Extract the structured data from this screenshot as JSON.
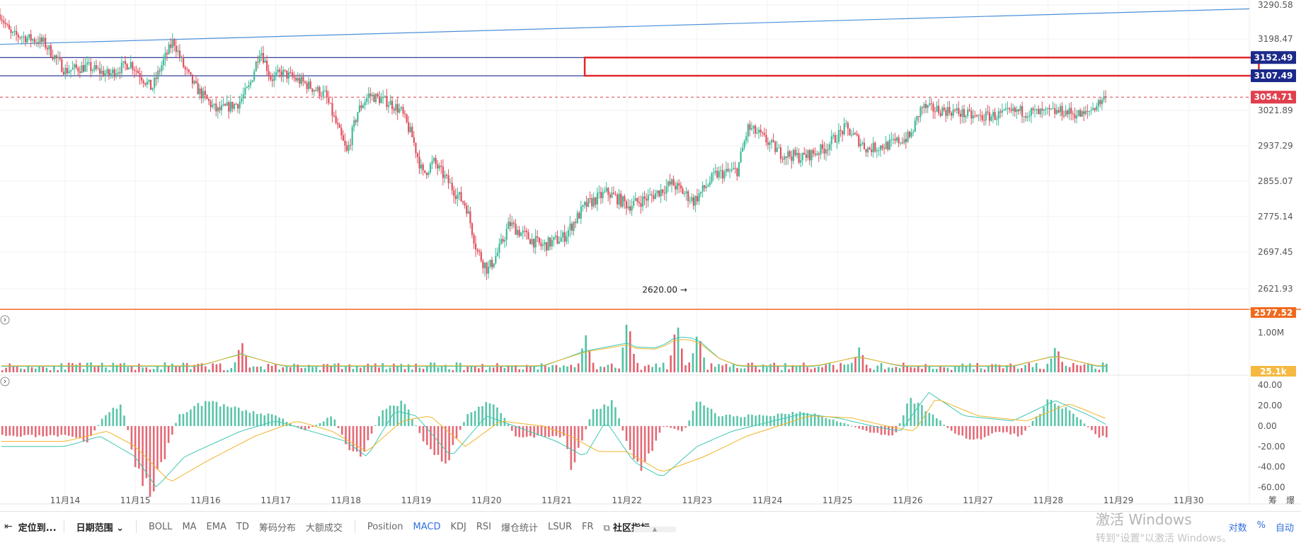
{
  "chart_data": [
    {
      "type": "candlestick",
      "title": "",
      "x_dates": [
        "11月14",
        "11月15",
        "11月16",
        "11月17",
        "11月18",
        "11月19",
        "11月20",
        "11月21",
        "11月22",
        "11月23",
        "11月24",
        "11月25",
        "11月26",
        "11月27",
        "11月28",
        "11月29",
        "11月30"
      ],
      "y_ticks": [
        "3290.58",
        "3198.47",
        "3021.89",
        "2937.29",
        "2855.07",
        "2775.14",
        "2697.45",
        "2621.93"
      ],
      "ylim": [
        2577.52,
        3290.58
      ],
      "path": [
        [
          0,
          3265
        ],
        [
          0.5,
          3210
        ],
        [
          1,
          3205
        ],
        [
          2,
          3190
        ],
        [
          3,
          3120
        ],
        [
          4,
          3130
        ],
        [
          5,
          3110
        ],
        [
          6,
          3140
        ],
        [
          7,
          3075
        ],
        [
          7.5,
          3140
        ],
        [
          8,
          3195
        ],
        [
          8.5,
          3125
        ],
        [
          9,
          3080
        ],
        [
          10,
          3020
        ],
        [
          11,
          3040
        ],
        [
          11.5,
          3080
        ],
        [
          12,
          3175
        ],
        [
          12.5,
          3100
        ],
        [
          13,
          3115
        ],
        [
          14,
          3090
        ],
        [
          15,
          3060
        ],
        [
          16,
          2920
        ],
        [
          16.5,
          3020
        ],
        [
          17,
          3060
        ],
        [
          18,
          3040
        ],
        [
          18.5,
          3020
        ],
        [
          19,
          2960
        ],
        [
          19.5,
          2870
        ],
        [
          20,
          2900
        ],
        [
          21,
          2830
        ],
        [
          21.5,
          2800
        ],
        [
          22,
          2700
        ],
        [
          22.5,
          2660
        ],
        [
          23,
          2700
        ],
        [
          23.5,
          2760
        ],
        [
          24,
          2740
        ],
        [
          25,
          2710
        ],
        [
          26,
          2730
        ],
        [
          27,
          2800
        ],
        [
          28,
          2830
        ],
        [
          29,
          2800
        ],
        [
          30,
          2820
        ],
        [
          31,
          2850
        ],
        [
          32,
          2810
        ],
        [
          33,
          2870
        ],
        [
          34,
          2880
        ],
        [
          34.5,
          2980
        ],
        [
          35,
          2965
        ],
        [
          36,
          2920
        ],
        [
          37,
          2910
        ],
        [
          38,
          2930
        ],
        [
          39,
          2980
        ],
        [
          40,
          2930
        ],
        [
          41,
          2940
        ],
        [
          42,
          2960
        ],
        [
          42.5,
          3030
        ],
        [
          43,
          3025
        ],
        [
          44,
          3020
        ],
        [
          45,
          3005
        ],
        [
          46,
          3010
        ],
        [
          47,
          3020
        ],
        [
          48,
          3015
        ],
        [
          49,
          3020
        ],
        [
          50,
          3010
        ],
        [
          51,
          3054.71
        ]
      ],
      "horizontal_levels": [
        {
          "value": 3152.49,
          "label": "3152.49",
          "color": "#1b2a8a"
        },
        {
          "value": 3107.49,
          "label": "3107.49",
          "color": "#1b2a8a"
        },
        {
          "value": 3054.71,
          "label": "3054.71",
          "color": "#e0404e",
          "dashed": true
        }
      ],
      "baseline": {
        "value": 2577.52,
        "label": "2577.52",
        "color": "#f06a1e"
      },
      "trendline": {
        "from": [
          0,
          3185
        ],
        "to": [
          17.3,
          3280
        ],
        "color": "#4a90d9"
      },
      "highlight_box": {
        "y_top": 3152.49,
        "y_bottom": 3107.49,
        "x_from": 7.4,
        "x_to": 17.0,
        "color": "#e0282d"
      },
      "annotation": {
        "text": "2620.00",
        "x": 8.9,
        "y": 2620.0
      },
      "up_color": "#3dbb9a",
      "down_color": "#e0505e"
    },
    {
      "type": "bar",
      "name": "volume",
      "y_ticks": [
        "1.00M"
      ],
      "ylim": [
        0,
        1.3
      ],
      "spikes": [
        [
          8.0,
          1.3
        ],
        [
          8.7,
          1.2
        ],
        [
          9.0,
          0.95
        ],
        [
          7.4,
          0.85
        ],
        [
          2.5,
          0.7
        ],
        [
          11.3,
          0.55
        ],
        [
          14.1,
          0.6
        ]
      ],
      "current_value_label": "25.1k",
      "current_color": "#f5b942"
    },
    {
      "type": "bar",
      "name": "MACD",
      "y_ticks": [
        "40.00",
        "20.00",
        "0.00",
        "-20.00",
        "-40.00",
        "-60.00"
      ],
      "ylim": [
        -70,
        45
      ],
      "hist_path": [
        [
          0,
          -10
        ],
        [
          0.3,
          -15
        ],
        [
          0.6,
          15
        ],
        [
          0.8,
          20
        ],
        [
          1.0,
          -40
        ],
        [
          1.2,
          -65
        ],
        [
          1.4,
          -30
        ],
        [
          1.6,
          10
        ],
        [
          2.0,
          25
        ],
        [
          2.5,
          15
        ],
        [
          3.0,
          10
        ],
        [
          3.4,
          -5
        ],
        [
          3.8,
          10
        ],
        [
          4.0,
          -20
        ],
        [
          4.2,
          -30
        ],
        [
          4.5,
          15
        ],
        [
          4.8,
          25
        ],
        [
          5.1,
          -15
        ],
        [
          5.4,
          -40
        ],
        [
          5.7,
          10
        ],
        [
          6.1,
          25
        ],
        [
          6.4,
          -10
        ],
        [
          7.1,
          -10
        ],
        [
          7.2,
          -40
        ],
        [
          7.5,
          15
        ],
        [
          7.8,
          25
        ],
        [
          8.0,
          -20
        ],
        [
          8.2,
          -45
        ],
        [
          8.5,
          0
        ],
        [
          8.8,
          -5
        ],
        [
          9.0,
          25
        ],
        [
          9.3,
          10
        ],
        [
          10.0,
          10
        ],
        [
          10.5,
          15
        ],
        [
          11.0,
          5
        ],
        [
          11.4,
          -5
        ],
        [
          11.8,
          -10
        ],
        [
          12.0,
          25
        ],
        [
          12.3,
          15
        ],
        [
          12.6,
          -5
        ],
        [
          12.9,
          -15
        ],
        [
          13.3,
          -5
        ],
        [
          13.6,
          -10
        ],
        [
          14.0,
          25
        ],
        [
          14.3,
          15
        ],
        [
          14.7,
          -10
        ],
        [
          15.1,
          -15
        ],
        [
          15.4,
          -5
        ],
        [
          15.7,
          -5
        ],
        [
          15.8,
          5
        ]
      ],
      "dif_path": [
        [
          0,
          -20
        ],
        [
          0.5,
          -10
        ],
        [
          1.0,
          -30
        ],
        [
          1.3,
          -60
        ],
        [
          1.7,
          -30
        ],
        [
          2.5,
          -5
        ],
        [
          3.0,
          5
        ],
        [
          3.5,
          -5
        ],
        [
          4.0,
          -15
        ],
        [
          4.3,
          -30
        ],
        [
          4.7,
          15
        ],
        [
          5.0,
          10
        ],
        [
          5.5,
          -30
        ],
        [
          6.0,
          10
        ],
        [
          6.6,
          -5
        ],
        [
          7.0,
          -15
        ],
        [
          7.4,
          -30
        ],
        [
          7.7,
          5
        ],
        [
          8.1,
          -35
        ],
        [
          8.5,
          -50
        ],
        [
          9.0,
          -20
        ],
        [
          9.5,
          -5
        ],
        [
          10.5,
          12
        ],
        [
          11.0,
          8
        ],
        [
          11.5,
          0
        ],
        [
          11.9,
          -5
        ],
        [
          12.3,
          33
        ],
        [
          12.8,
          10
        ],
        [
          13.5,
          5
        ],
        [
          14.1,
          25
        ],
        [
          14.6,
          10
        ],
        [
          15.0,
          -5
        ],
        [
          15.5,
          0
        ],
        [
          15.7,
          3
        ]
      ],
      "dea_path": [
        [
          0,
          -15
        ],
        [
          0.6,
          -5
        ],
        [
          1.0,
          -20
        ],
        [
          1.5,
          -55
        ],
        [
          2.0,
          -35
        ],
        [
          2.7,
          -10
        ],
        [
          3.3,
          5
        ],
        [
          3.8,
          -5
        ],
        [
          4.3,
          -25
        ],
        [
          4.8,
          5
        ],
        [
          5.2,
          10
        ],
        [
          5.7,
          -20
        ],
        [
          6.2,
          5
        ],
        [
          6.8,
          0
        ],
        [
          7.2,
          -10
        ],
        [
          7.6,
          -25
        ],
        [
          8.0,
          -25
        ],
        [
          8.5,
          -45
        ],
        [
          9.1,
          -30
        ],
        [
          9.7,
          -10
        ],
        [
          10.6,
          10
        ],
        [
          11.2,
          8
        ],
        [
          11.7,
          0
        ],
        [
          12.1,
          -5
        ],
        [
          12.4,
          27
        ],
        [
          13.0,
          10
        ],
        [
          13.7,
          5
        ],
        [
          14.3,
          22
        ],
        [
          14.8,
          8
        ],
        [
          15.2,
          -3
        ],
        [
          15.7,
          2
        ]
      ],
      "dif_color": "#3cc8b4",
      "dea_color": "#f0b429",
      "up_color": "#3dbb9a",
      "down_color": "#e0505e"
    }
  ],
  "toolbar": {
    "locate_label": "定位到...",
    "date_range_label": "日期范围",
    "indicators_a": [
      "BOLL",
      "MA",
      "EMA",
      "TD",
      "筹码分布",
      "大额成交"
    ],
    "indicators_b": [
      "Position",
      "MACD",
      "KDJ",
      "RSI",
      "爆仓统计",
      "LSUR",
      "FR"
    ],
    "community_label": "社区指标",
    "right_items": [
      "对数",
      "%",
      "自动"
    ],
    "corner_labels": [
      "筹",
      "爆"
    ]
  },
  "watermark": {
    "line1": "激活 Windows",
    "line2": "转到\"设置\"以激活 Windows。"
  }
}
